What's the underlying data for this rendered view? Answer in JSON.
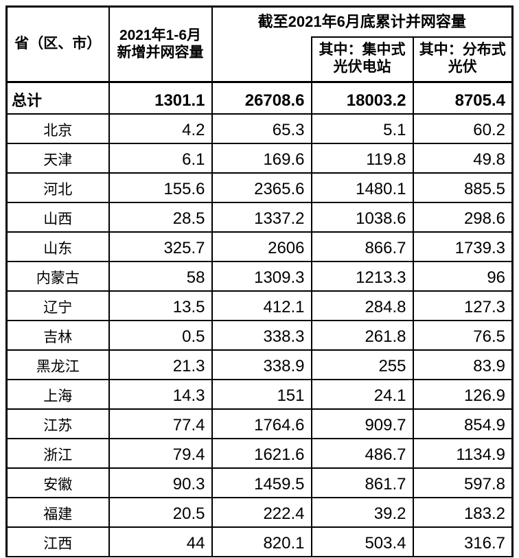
{
  "table": {
    "header": {
      "province": "省（区、市）",
      "new_capacity": "2021年1-6月\n新增并网容量",
      "cumulative_group": "截至2021年6月底累计并网容量",
      "cumulative_total_subheader": "",
      "centralized": "其中：集中式\n光伏电站",
      "distributed": "其中：分布式\n光伏"
    },
    "total_row": {
      "label": "总计",
      "values": [
        "1301.1",
        "26708.6",
        "18003.2",
        "8705.4"
      ]
    },
    "rows": [
      {
        "province": "北京",
        "values": [
          "4.2",
          "65.3",
          "5.1",
          "60.2"
        ]
      },
      {
        "province": "天津",
        "values": [
          "6.1",
          "169.6",
          "119.8",
          "49.8"
        ]
      },
      {
        "province": "河北",
        "values": [
          "155.6",
          "2365.6",
          "1480.1",
          "885.5"
        ]
      },
      {
        "province": "山西",
        "values": [
          "28.5",
          "1337.2",
          "1038.6",
          "298.6"
        ]
      },
      {
        "province": "山东",
        "values": [
          "325.7",
          "2606",
          "866.7",
          "1739.3"
        ]
      },
      {
        "province": "内蒙古",
        "values": [
          "58",
          "1309.3",
          "1213.3",
          "96"
        ]
      },
      {
        "province": "辽宁",
        "values": [
          "13.5",
          "412.1",
          "284.8",
          "127.3"
        ]
      },
      {
        "province": "吉林",
        "values": [
          "0.5",
          "338.3",
          "261.8",
          "76.5"
        ]
      },
      {
        "province": "黑龙江",
        "values": [
          "21.3",
          "338.9",
          "255",
          "83.9"
        ]
      },
      {
        "province": "上海",
        "values": [
          "14.3",
          "151",
          "24.1",
          "126.9"
        ]
      },
      {
        "province": "江苏",
        "values": [
          "77.4",
          "1764.6",
          "909.7",
          "854.9"
        ]
      },
      {
        "province": "浙江",
        "values": [
          "79.4",
          "1621.6",
          "486.7",
          "1134.9"
        ]
      },
      {
        "province": "安徽",
        "values": [
          "90.3",
          "1459.5",
          "861.7",
          "597.8"
        ]
      },
      {
        "province": "福建",
        "values": [
          "20.5",
          "222.4",
          "39.2",
          "183.2"
        ]
      },
      {
        "province": "江西",
        "values": [
          "44",
          "820.1",
          "503.4",
          "316.7"
        ]
      }
    ]
  },
  "chart_data": {
    "type": "table",
    "title": "截至2021年6月底累计并网容量",
    "columns": [
      "省（区、市）",
      "2021年1-6月新增并网容量",
      "截至2021年6月底累计并网容量",
      "其中：集中式光伏电站",
      "其中：分布式光伏"
    ],
    "rows": [
      [
        "总计",
        1301.1,
        26708.6,
        18003.2,
        8705.4
      ],
      [
        "北京",
        4.2,
        65.3,
        5.1,
        60.2
      ],
      [
        "天津",
        6.1,
        169.6,
        119.8,
        49.8
      ],
      [
        "河北",
        155.6,
        2365.6,
        1480.1,
        885.5
      ],
      [
        "山西",
        28.5,
        1337.2,
        1038.6,
        298.6
      ],
      [
        "山东",
        325.7,
        2606,
        866.7,
        1739.3
      ],
      [
        "内蒙古",
        58,
        1309.3,
        1213.3,
        96
      ],
      [
        "辽宁",
        13.5,
        412.1,
        284.8,
        127.3
      ],
      [
        "吉林",
        0.5,
        338.3,
        261.8,
        76.5
      ],
      [
        "黑龙江",
        21.3,
        338.9,
        255,
        83.9
      ],
      [
        "上海",
        14.3,
        151,
        24.1,
        126.9
      ],
      [
        "江苏",
        77.4,
        1764.6,
        909.7,
        854.9
      ],
      [
        "浙江",
        79.4,
        1621.6,
        486.7,
        1134.9
      ],
      [
        "安徽",
        90.3,
        1459.5,
        861.7,
        597.8
      ],
      [
        "福建",
        20.5,
        222.4,
        39.2,
        183.2
      ],
      [
        "江西",
        44,
        820.1,
        503.4,
        316.7
      ]
    ],
    "colors": {
      "text": "#000000",
      "border": "#000000",
      "background": "#ffffff"
    }
  }
}
